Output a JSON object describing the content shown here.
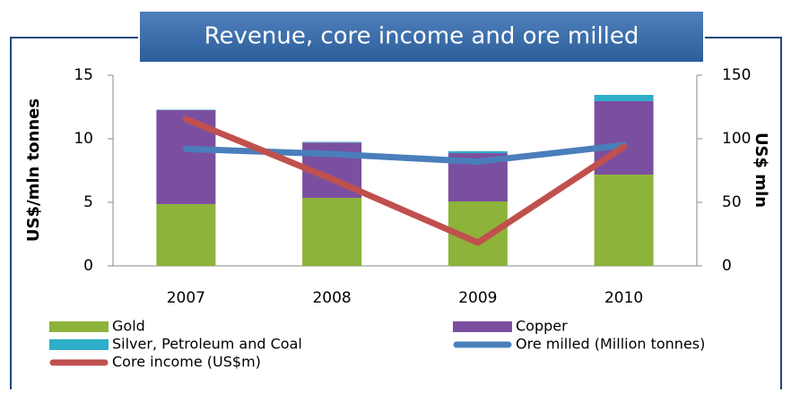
{
  "chart_data": {
    "type": "bar",
    "title": "Revenue, core income and ore milled",
    "ylabel": "US$/mln  tonnes",
    "y2label": "US$ mln",
    "categories": [
      "2007",
      "2008",
      "2009",
      "2010"
    ],
    "ylim": [
      0,
      15
    ],
    "yticks": [
      0,
      5,
      10,
      15
    ],
    "y2lim": [
      0,
      150
    ],
    "y2ticks": [
      0,
      50,
      100,
      150
    ],
    "series": [
      {
        "name": "Gold",
        "type": "bar",
        "axis": "y2",
        "color": "#8db33a",
        "values": [
          48.6,
          53.5,
          50.7,
          71.8
        ]
      },
      {
        "name": "Copper",
        "type": "bar",
        "axis": "y2",
        "color": "#7b4fa0",
        "values": [
          74,
          43.5,
          38,
          57.8
        ]
      },
      {
        "name": "Silver, Petroleum and Coal",
        "type": "bar",
        "axis": "y2",
        "color": "#2eaec8",
        "values": [
          0.3,
          0.5,
          1.5,
          4.9
        ]
      },
      {
        "name": "Ore milled (Million tonnes)",
        "type": "line",
        "axis": "y",
        "color": "#4a7ebb",
        "values": [
          9.2,
          8.8,
          8.2,
          9.5
        ]
      },
      {
        "name": "Core income (US$m)",
        "type": "line",
        "axis": "y2",
        "color": "#c0504d",
        "values": [
          115.5,
          68.3,
          18.3,
          93.7
        ]
      }
    ]
  }
}
